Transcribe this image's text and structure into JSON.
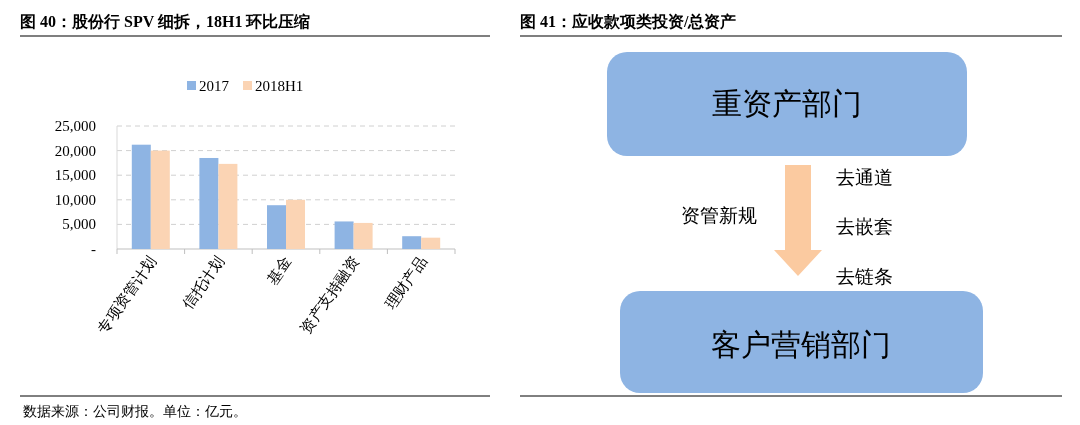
{
  "chart_data": [
    {
      "type": "bar",
      "title": "图 40：股份行 SPV 细拆，18H1 环比压缩",
      "categories": [
        "专项资管计划",
        "信托计划",
        "基金",
        "资产支持融资",
        "理财产品"
      ],
      "series": [
        {
          "name": "2017",
          "color": "#8eb4e3",
          "values": [
            21200,
            18500,
            8900,
            5600,
            2600
          ]
        },
        {
          "name": "2018H1",
          "color": "#fbd4b4",
          "values": [
            20000,
            17300,
            10000,
            5300,
            2300
          ]
        }
      ],
      "ylim": [
        0,
        25000
      ],
      "yticks": [
        {
          "value": 0,
          "label": "-"
        },
        {
          "value": 5000,
          "label": "5,000"
        },
        {
          "value": 10000,
          "label": "10,000"
        },
        {
          "value": 15000,
          "label": "15,000"
        },
        {
          "value": 20000,
          "label": "20,000"
        },
        {
          "value": 25000,
          "label": "25,000"
        }
      ],
      "grid": "y",
      "legend": "top",
      "annotations": [
        "数据来源：公司财报。单位：亿元。"
      ]
    },
    {
      "type": "other",
      "title": "图 41：应收款项类投资/总资产",
      "annotations": [
        "重资产部门",
        "资管新规",
        "去通道",
        "去嵌套",
        "去链条",
        "客户营销部门"
      ]
    }
  ]
}
